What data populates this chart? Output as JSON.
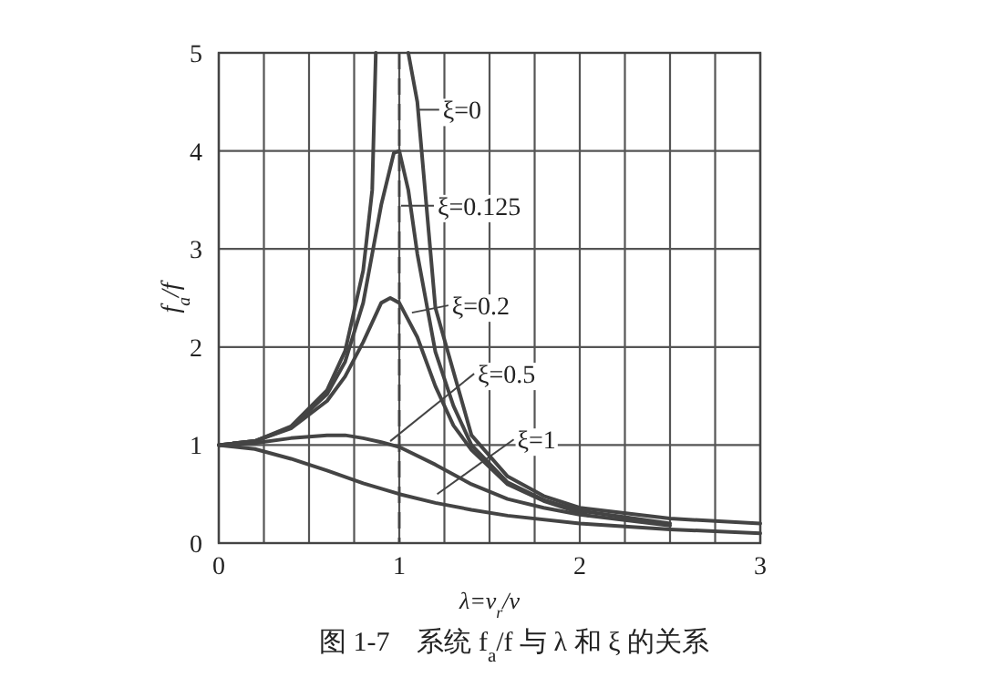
{
  "chart_data": {
    "type": "line",
    "xlabel": "λ=ν$_{r}$/ν",
    "ylabel": "f$_{a}$/f",
    "xlim": [
      0,
      3
    ],
    "ylim": [
      0,
      5
    ],
    "xticks": [
      0,
      {
        "value": 0.25,
        "label": null
      },
      {
        "value": 0.5,
        "label": null
      },
      {
        "value": 0.75,
        "label": null
      },
      1,
      {
        "value": 1.25,
        "label": null
      },
      {
        "value": 1.5,
        "label": null
      },
      {
        "value": 1.75,
        "label": null
      },
      2,
      {
        "value": 2.25,
        "label": null
      },
      {
        "value": 2.5,
        "label": null
      },
      {
        "value": 2.75,
        "label": null
      },
      3
    ],
    "yticks": [
      0,
      1,
      2,
      3,
      4,
      5
    ],
    "grid": true,
    "marker": "none",
    "line_style": "solid",
    "series": [
      {
        "color": "#444444",
        "x": [
          0,
          0.2,
          0.4,
          0.6,
          0.7,
          0.8,
          0.85,
          0.87
        ],
        "values": [
          1,
          1.04,
          1.19,
          1.56,
          1.96,
          2.78,
          3.6,
          5.0
        ]
      },
      {
        "color": "#444444",
        "x": [
          1.05,
          1.1,
          1.2,
          1.4,
          1.6,
          1.8,
          2.0,
          2.5,
          3.0
        ],
        "values": [
          5.0,
          4.5,
          2.4,
          1.1,
          0.68,
          0.48,
          0.36,
          0.25,
          0.2
        ]
      },
      {
        "color": "#444444",
        "x": [
          0,
          0.2,
          0.4,
          0.6,
          0.7,
          0.8,
          0.9,
          0.97,
          1.0,
          1.05,
          1.1,
          1.2,
          1.3,
          1.4,
          1.6,
          1.8,
          2.0,
          2.5
        ],
        "values": [
          1,
          1.04,
          1.18,
          1.52,
          1.85,
          2.45,
          3.45,
          3.98,
          4.0,
          3.6,
          2.95,
          1.95,
          1.4,
          1.0,
          0.62,
          0.44,
          0.33,
          0.2
        ]
      },
      {
        "color": "#444444",
        "x": [
          0,
          0.2,
          0.4,
          0.6,
          0.7,
          0.8,
          0.9,
          0.95,
          1.0,
          1.1,
          1.2,
          1.3,
          1.4,
          1.6,
          1.8,
          2.05
        ],
        "values": [
          1,
          1.04,
          1.17,
          1.45,
          1.7,
          2.05,
          2.45,
          2.5,
          2.45,
          2.1,
          1.6,
          1.2,
          0.95,
          0.6,
          0.43,
          0.28
        ]
      },
      {
        "color": "#444444",
        "x": [
          0,
          0.2,
          0.4,
          0.6,
          0.7,
          0.8,
          0.9,
          1.0,
          1.2,
          1.4,
          1.6,
          1.8,
          2.0,
          2.5
        ],
        "values": [
          1,
          1.02,
          1.07,
          1.1,
          1.1,
          1.07,
          1.03,
          0.98,
          0.8,
          0.6,
          0.45,
          0.36,
          0.29,
          0.18
        ]
      },
      {
        "color": "#444444",
        "x": [
          0,
          0.2,
          0.4,
          0.6,
          0.8,
          1.0,
          1.2,
          1.4,
          1.6,
          2.0,
          2.5,
          3.0
        ],
        "values": [
          1,
          0.96,
          0.86,
          0.74,
          0.61,
          0.5,
          0.41,
          0.34,
          0.28,
          0.2,
          0.14,
          0.1
        ]
      }
    ],
    "ref_lines": [
      {
        "axis": "x",
        "value": 1,
        "line_style": "dashed",
        "color": "#444444"
      }
    ],
    "annotations": [
      {
        "text": "ξ=0",
        "x": 1.1,
        "y": 4.42
      },
      {
        "text": "ξ=0.125",
        "x": 1.01,
        "y": 3.44
      },
      {
        "text": "ξ=0.2",
        "x": 1.07,
        "y": 2.35
      },
      {
        "text": "ξ=0.5",
        "x": 0.95,
        "y": 1.04
      },
      {
        "text": "ξ=1",
        "x": 1.21,
        "y": 0.5
      },
      "图 1-7　系统 f$_{a}$/f 与 λ 和 ξ 的关系"
    ]
  }
}
